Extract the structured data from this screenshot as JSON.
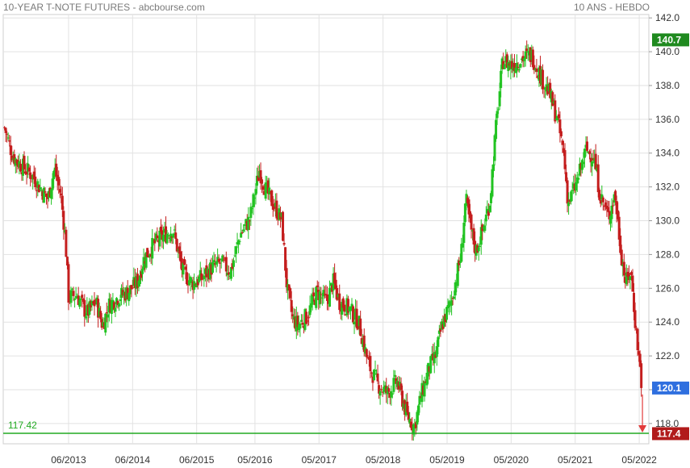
{
  "header": {
    "title": "10-YEAR T-NOTE FUTURES - abcbourse.com",
    "subtitle": "10 ANS - HEBDO"
  },
  "colors": {
    "up": "#22c322",
    "down": "#c41e1e",
    "grid": "#e2e2e2",
    "axis_text": "#333333",
    "last_badge": "#2f6fdf",
    "high_badge": "#1f8a1f",
    "low_badge": "#b11b1b",
    "support_line": "#22aa22",
    "arrow": "#e23a3a"
  },
  "icons": {
    "arrow": "arrow-down-icon"
  },
  "chart_data": {
    "type": "candlestick",
    "title": "10-YEAR T-NOTE FUTURES - abcbourse.com",
    "subtitle": "10 ANS - HEBDO",
    "y_ticks": [
      "118.0",
      "120.0",
      "122.0",
      "124.0",
      "126.0",
      "128.0",
      "130.0",
      "132.0",
      "134.0",
      "136.0",
      "138.0",
      "140.0",
      "142.0"
    ],
    "ylim": [
      116.8,
      142.2
    ],
    "x_ticks": [
      {
        "label": "06/2013",
        "x": 2013.42
      },
      {
        "label": "06/2014",
        "x": 2014.42
      },
      {
        "label": "06/2015",
        "x": 2015.42
      },
      {
        "label": "05/2016",
        "x": 2016.33
      },
      {
        "label": "05/2017",
        "x": 2017.33
      },
      {
        "label": "05/2018",
        "x": 2018.33
      },
      {
        "label": "05/2019",
        "x": 2019.33
      },
      {
        "label": "05/2020",
        "x": 2020.33
      },
      {
        "label": "05/2021",
        "x": 2021.33
      },
      {
        "label": "05/2022",
        "x": 2022.33
      }
    ],
    "xlim": [
      2012.4,
      2022.48
    ],
    "end_x": 2022.38,
    "grid": true,
    "badges": {
      "high": {
        "label": "140.7",
        "value": 140.7
      },
      "last": {
        "label": "120.1",
        "value": 120.1
      },
      "low": {
        "label": "117.4",
        "value": 117.4
      }
    },
    "support_line": {
      "label": "117.42",
      "value": 117.42
    },
    "close_path": [
      [
        2012.42,
        135.5
      ],
      [
        2012.55,
        133.8
      ],
      [
        2012.7,
        133.2
      ],
      [
        2012.85,
        132.7
      ],
      [
        2013.0,
        131.8
      ],
      [
        2013.1,
        131.3
      ],
      [
        2013.2,
        133.1
      ],
      [
        2013.3,
        131.5
      ],
      [
        2013.37,
        129.0
      ],
      [
        2013.42,
        125.5
      ],
      [
        2013.55,
        125.6
      ],
      [
        2013.7,
        124.5
      ],
      [
        2013.85,
        125.2
      ],
      [
        2013.95,
        123.8
      ],
      [
        2014.05,
        125.0
      ],
      [
        2014.2,
        125.5
      ],
      [
        2014.35,
        125.8
      ],
      [
        2014.5,
        126.4
      ],
      [
        2014.6,
        127.8
      ],
      [
        2014.75,
        128.6
      ],
      [
        2014.9,
        129.1
      ],
      [
        2015.05,
        129.5
      ],
      [
        2015.2,
        127.0
      ],
      [
        2015.35,
        126.3
      ],
      [
        2015.5,
        126.6
      ],
      [
        2015.65,
        127.2
      ],
      [
        2015.8,
        127.5
      ],
      [
        2015.95,
        127.0
      ],
      [
        2016.1,
        129.2
      ],
      [
        2016.25,
        130.1
      ],
      [
        2016.4,
        133.0
      ],
      [
        2016.5,
        131.8
      ],
      [
        2016.6,
        131.1
      ],
      [
        2016.75,
        130.0
      ],
      [
        2016.83,
        126.0
      ],
      [
        2016.92,
        124.2
      ],
      [
        2017.0,
        123.8
      ],
      [
        2017.15,
        124.4
      ],
      [
        2017.3,
        125.8
      ],
      [
        2017.45,
        125.2
      ],
      [
        2017.55,
        126.4
      ],
      [
        2017.65,
        125.2
      ],
      [
        2017.8,
        124.8
      ],
      [
        2017.95,
        124.0
      ],
      [
        2018.1,
        121.5
      ],
      [
        2018.25,
        120.3
      ],
      [
        2018.4,
        119.8
      ],
      [
        2018.55,
        120.5
      ],
      [
        2018.7,
        118.5
      ],
      [
        2018.82,
        117.8
      ],
      [
        2018.92,
        119.6
      ],
      [
        2019.05,
        121.3
      ],
      [
        2019.15,
        122.0
      ],
      [
        2019.25,
        123.8
      ],
      [
        2019.4,
        125.3
      ],
      [
        2019.55,
        128.0
      ],
      [
        2019.62,
        131.3
      ],
      [
        2019.7,
        129.5
      ],
      [
        2019.78,
        128.2
      ],
      [
        2019.9,
        129.6
      ],
      [
        2020.0,
        131.2
      ],
      [
        2020.08,
        135.0
      ],
      [
        2020.2,
        139.5
      ],
      [
        2020.35,
        139.2
      ],
      [
        2020.5,
        139.6
      ],
      [
        2020.65,
        139.8
      ],
      [
        2020.8,
        138.5
      ],
      [
        2020.92,
        137.6
      ],
      [
        2021.05,
        136.0
      ],
      [
        2021.15,
        134.0
      ],
      [
        2021.22,
        131.0
      ],
      [
        2021.35,
        132.2
      ],
      [
        2021.5,
        134.2
      ],
      [
        2021.62,
        133.8
      ],
      [
        2021.72,
        131.5
      ],
      [
        2021.85,
        130.2
      ],
      [
        2021.95,
        131.6
      ],
      [
        2022.05,
        128.0
      ],
      [
        2022.12,
        126.3
      ],
      [
        2022.2,
        127.0
      ],
      [
        2022.28,
        123.5
      ],
      [
        2022.34,
        121.4
      ],
      [
        2022.38,
        120.1
      ]
    ]
  }
}
